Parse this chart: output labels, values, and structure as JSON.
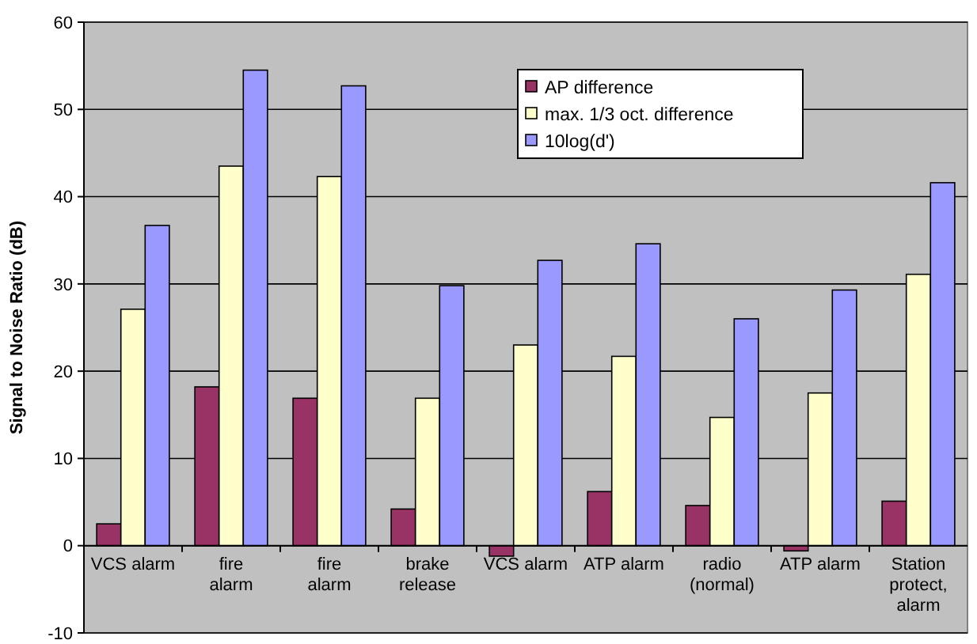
{
  "chart_data": {
    "type": "bar",
    "ylabel": "Signal to Noise Ratio (dB)",
    "categories": [
      "VCS alarm",
      "fire alarm",
      "fire alarm",
      "brake release",
      "VCS alarm",
      "ATP alarm",
      "radio (normal)",
      "ATP alarm",
      "Station protect, alarm"
    ],
    "series": [
      {
        "name": "AP difference",
        "color": "#993366",
        "values": [
          2.5,
          18.2,
          16.9,
          4.2,
          -1.2,
          6.2,
          4.6,
          -0.6,
          5.1
        ]
      },
      {
        "name": "max. 1/3 oct. difference",
        "color": "#ffffcc",
        "values": [
          27.1,
          43.5,
          42.3,
          16.9,
          23.0,
          21.7,
          14.7,
          17.5,
          31.1
        ]
      },
      {
        "name": "10log(d')",
        "color": "#9999ff",
        "values": [
          36.7,
          54.5,
          52.7,
          29.8,
          32.7,
          34.6,
          26.0,
          29.3,
          41.6
        ]
      }
    ],
    "ylim": [
      -10,
      60
    ],
    "yticks": [
      -10,
      0,
      10,
      20,
      30,
      40,
      50,
      60
    ],
    "grid": "y",
    "legend": "top right"
  }
}
